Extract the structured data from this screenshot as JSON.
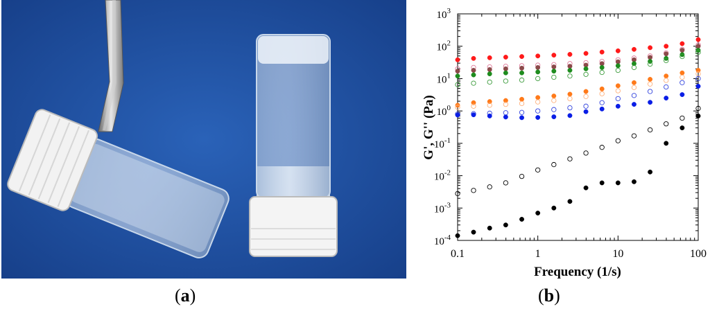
{
  "panels": {
    "a": {
      "label": "a"
    },
    "b": {
      "label": "b"
    }
  },
  "photo": {
    "background_color": "#1f4fa0",
    "objects": [
      "tweezers",
      "tilted-vial",
      "upright-vial"
    ]
  },
  "chart_data": {
    "type": "scatter",
    "xlabel": "Frequency (1/s)",
    "ylabel": "G', G'' (Pa)",
    "xscale": "log",
    "yscale": "log",
    "xlim": [
      0.1,
      100
    ],
    "ylim": [
      0.0001,
      1000
    ],
    "x_ticks": [
      {
        "value": 0.1,
        "label": "0.1"
      },
      {
        "value": 1,
        "label": "1"
      },
      {
        "value": 10,
        "label": "10"
      },
      {
        "value": 100,
        "label": "100"
      }
    ],
    "y_ticks": [
      {
        "value": 0.0001,
        "base": "10",
        "exp": "-4"
      },
      {
        "value": 0.001,
        "base": "10",
        "exp": "-3"
      },
      {
        "value": 0.01,
        "base": "10",
        "exp": "-2"
      },
      {
        "value": 0.1,
        "base": "10",
        "exp": "-1"
      },
      {
        "value": 1,
        "base": "10",
        "exp": "0"
      },
      {
        "value": 10,
        "base": "10",
        "exp": "1"
      },
      {
        "value": 100,
        "base": "10",
        "exp": "2"
      },
      {
        "value": 1000,
        "base": "10",
        "exp": "3"
      }
    ],
    "x": [
      0.1,
      0.158,
      0.251,
      0.398,
      0.631,
      1.0,
      1.585,
      2.512,
      3.981,
      6.31,
      10.0,
      15.85,
      25.12,
      39.81,
      63.1,
      100.0
    ],
    "series": [
      {
        "color": "#ff1a1a",
        "filled": true,
        "values": [
          38,
          42,
          44,
          46,
          48,
          50,
          53,
          56,
          60,
          66,
          72,
          80,
          90,
          100,
          120,
          160
        ]
      },
      {
        "color": "#e07a9a",
        "filled": false,
        "values": [
          20,
          22,
          23,
          24,
          25,
          26,
          27,
          29,
          31,
          34,
          38,
          43,
          50,
          62,
          80,
          110
        ]
      },
      {
        "color": "#8b4a4a",
        "filled": true,
        "values": [
          17,
          18,
          19,
          20,
          21,
          22,
          23,
          24,
          26,
          29,
          33,
          38,
          45,
          58,
          75,
          100
        ]
      },
      {
        "color": "#1e8c1e",
        "filled": true,
        "values": [
          12,
          13,
          14,
          15,
          15,
          16,
          17,
          18,
          20,
          22,
          25,
          29,
          34,
          42,
          55,
          75
        ]
      },
      {
        "color": "#3a9a3a",
        "filled": false,
        "values": [
          6.5,
          7.2,
          7.8,
          8.4,
          9.0,
          10.0,
          11.0,
          12.0,
          13.5,
          15.5,
          18.0,
          22.0,
          28.0,
          36.0,
          48.0,
          65.0
        ]
      },
      {
        "color": "#ff7a1a",
        "filled": true,
        "values": [
          1.5,
          1.8,
          1.95,
          2.1,
          2.3,
          2.6,
          2.9,
          3.3,
          4.0,
          4.8,
          6.0,
          7.5,
          9.5,
          12.0,
          15.0,
          18.0
        ]
      },
      {
        "color": "#ffb07a",
        "filled": false,
        "values": [
          1.3,
          1.4,
          1.5,
          1.6,
          1.7,
          1.9,
          2.1,
          2.4,
          2.8,
          3.4,
          4.2,
          5.3,
          6.8,
          8.8,
          11.0,
          14.0
        ]
      },
      {
        "color": "#3344dd",
        "filled": false,
        "values": [
          0.8,
          0.82,
          0.85,
          0.88,
          0.9,
          1.0,
          1.1,
          1.25,
          1.4,
          1.8,
          2.4,
          3.0,
          4.0,
          5.5,
          7.5,
          10.0
        ]
      },
      {
        "color": "#0a1ee6",
        "filled": true,
        "values": [
          0.75,
          0.76,
          0.7,
          0.65,
          0.62,
          0.63,
          0.66,
          0.72,
          0.95,
          1.15,
          1.4,
          1.6,
          1.85,
          2.5,
          3.2,
          5.8
        ]
      },
      {
        "color": "#000000",
        "filled": false,
        "values": [
          0.0028,
          0.0035,
          0.0045,
          0.006,
          0.0095,
          0.015,
          0.022,
          0.033,
          0.05,
          0.075,
          0.12,
          0.17,
          0.26,
          0.4,
          0.6,
          1.2
        ]
      },
      {
        "color": "#000000",
        "filled": true,
        "values": [
          0.00014,
          0.00018,
          0.00024,
          0.0003,
          0.00045,
          0.0007,
          0.001,
          0.0016,
          0.0042,
          0.006,
          0.006,
          0.0065,
          0.013,
          0.1,
          0.3,
          0.7
        ]
      }
    ]
  }
}
